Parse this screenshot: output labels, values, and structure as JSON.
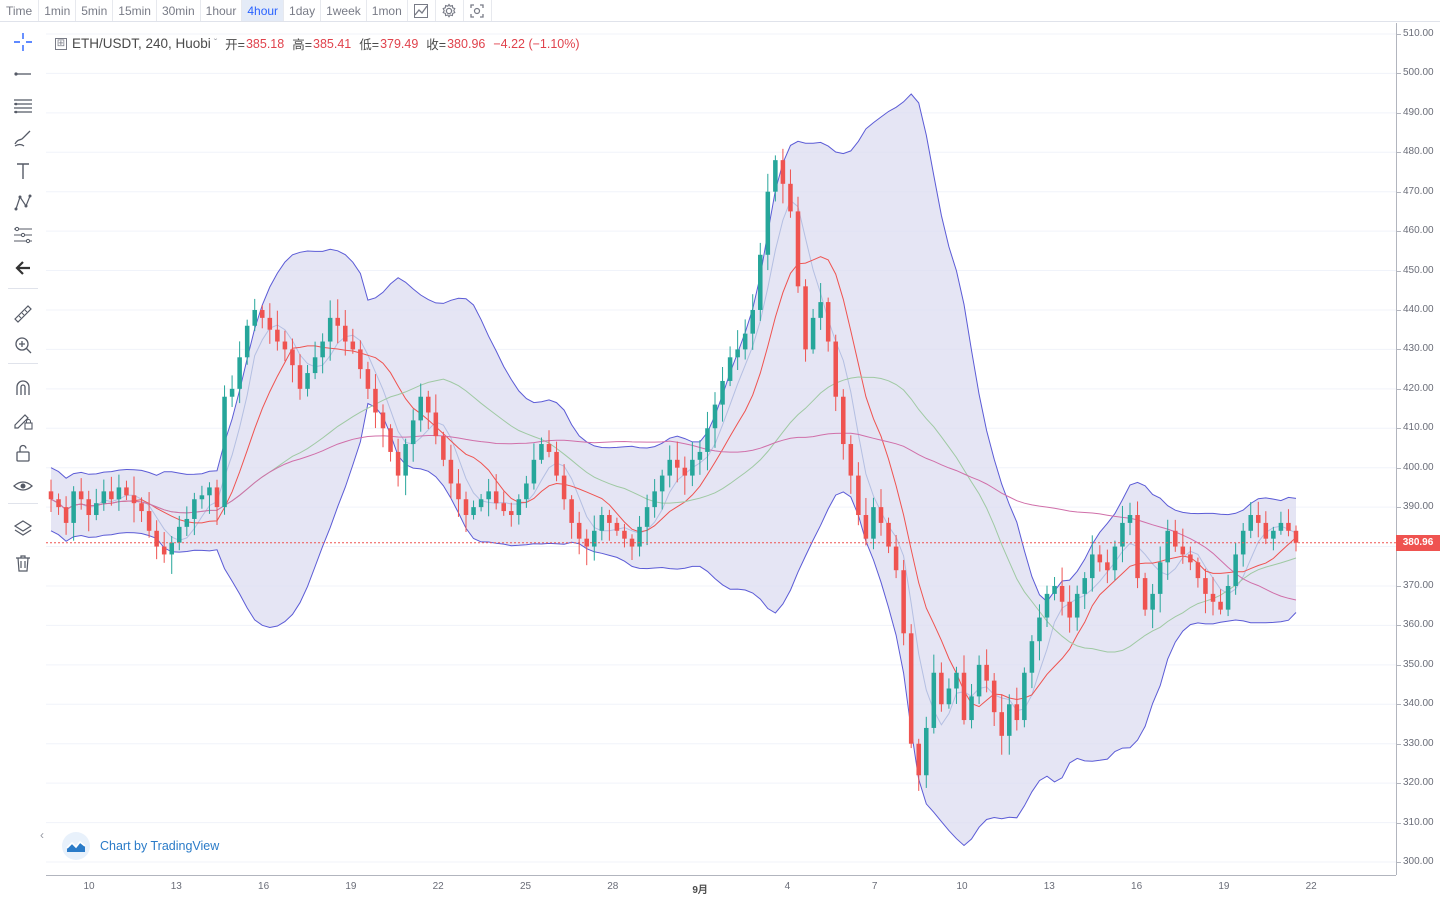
{
  "toolbar": {
    "intervals": [
      "Time",
      "1min",
      "5min",
      "15min",
      "30min",
      "1hour",
      "4hour",
      "1day",
      "1week",
      "1mon"
    ],
    "active_interval": "4hour",
    "icons": [
      "indicators-icon",
      "settings-icon",
      "screenshot-icon"
    ]
  },
  "left_tools": [
    "crosshair-icon",
    "trend-line-icon",
    "horizontal-lines-icon",
    "brush-icon",
    "text-icon",
    "pattern-icon",
    "fib-icon",
    "back-arrow-icon",
    "ruler-icon",
    "zoom-in-icon",
    "magnet-icon",
    "lock-pencil-icon",
    "unlock-icon",
    "eye-icon",
    "layers-icon",
    "trash-icon"
  ],
  "legend": {
    "plus": "⊞",
    "symbol": "ETH/USDT, 240, Huobi",
    "caret": "ˇ",
    "open_label": "开=",
    "open": "385.18",
    "high_label": "高=",
    "high": "385.41",
    "low_label": "低=",
    "low": "379.49",
    "close_label": "收=",
    "close": "380.96",
    "change": "−4.22 (−1.10%)"
  },
  "last_price_label": "380.96",
  "watermark": "Chart by TradingView",
  "collapse_glyph": "‹",
  "colors": {
    "up": "#26a69a",
    "down": "#ef5350",
    "bb_line": "#5b5bd6",
    "bb_fill": "#dcdcf0",
    "ma_light_blue": "#b4bfe2",
    "ma_red": "#ef5350",
    "ma_green": "#9fc9a3",
    "ma_pink": "#d06fa9",
    "price_line": "#ef5350"
  },
  "chart_data": {
    "type": "candlestick",
    "symbol": "ETH/USDT",
    "interval": "240",
    "exchange": "Huobi",
    "price_axis": [
      "510.00",
      "500.00",
      "490.00",
      "480.00",
      "470.00",
      "460.00",
      "450.00",
      "440.00",
      "430.00",
      "420.00",
      "410.00",
      "400.00",
      "390.00",
      "380.00",
      "370.00",
      "360.00",
      "350.00",
      "340.00",
      "330.00",
      "320.00",
      "310.00",
      "300.00"
    ],
    "time_axis": [
      "10",
      "13",
      "16",
      "19",
      "22",
      "25",
      "28",
      "9月",
      "4",
      "7",
      "10",
      "13",
      "16",
      "19",
      "22"
    ],
    "ylim": [
      300,
      510
    ],
    "last_price": 380.96,
    "closes": [
      392,
      390,
      386,
      394,
      392,
      388,
      391,
      394,
      392,
      395,
      393,
      391,
      389,
      384,
      380,
      378,
      381,
      385,
      387,
      392,
      393,
      395,
      390,
      418,
      420,
      428,
      436,
      440,
      438,
      435,
      432,
      430,
      426,
      420,
      424,
      428,
      432,
      438,
      436,
      432,
      430,
      425,
      420,
      414,
      410,
      404,
      398,
      406,
      412,
      418,
      414,
      408,
      402,
      396,
      392,
      388,
      390,
      392,
      394,
      391,
      389,
      388,
      392,
      396,
      402,
      406,
      404,
      398,
      392,
      386,
      382,
      380,
      384,
      388,
      386,
      384,
      382,
      380,
      385,
      390,
      394,
      398,
      402,
      400,
      398,
      402,
      404,
      410,
      416,
      422,
      428,
      430,
      434,
      440,
      454,
      470,
      478,
      472,
      465,
      446,
      430,
      438,
      442,
      432,
      418,
      406,
      398,
      388,
      382,
      390,
      386,
      380,
      374,
      358,
      330,
      322,
      334,
      348,
      340,
      344,
      348,
      336,
      342,
      350,
      346,
      338,
      332,
      340,
      336,
      348,
      356,
      362,
      368,
      370,
      366,
      362,
      368,
      372,
      378,
      376,
      374,
      380,
      386,
      388,
      372,
      364,
      368,
      376,
      384,
      380,
      378,
      376,
      372,
      368,
      366,
      364,
      370,
      378,
      384,
      388,
      386,
      382,
      384,
      386,
      384,
      381
    ]
  }
}
